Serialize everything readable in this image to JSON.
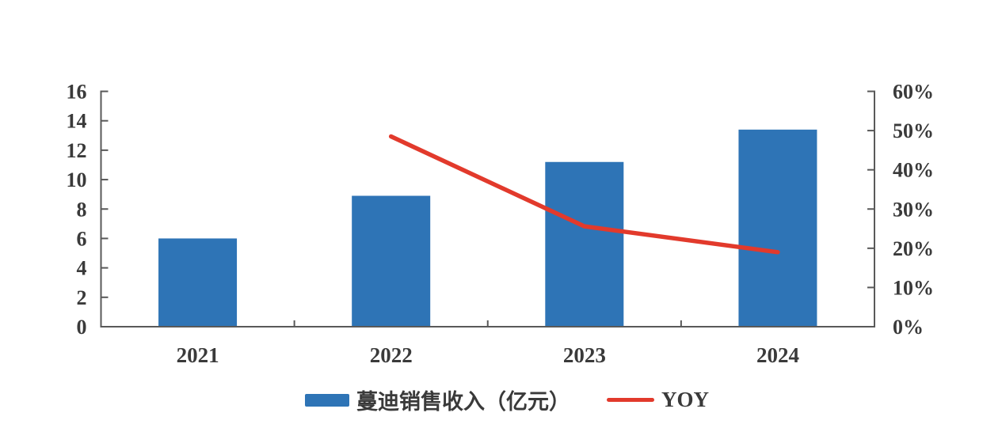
{
  "chart": {
    "background_color": "#ffffff",
    "bar_color": "#2e74b6",
    "line_color": "#e23a2c",
    "axis_color": "#595959",
    "text_color": "#3a3a3a"
  },
  "chart_data": {
    "type": "bar",
    "title": "",
    "categories": [
      "2021",
      "2022",
      "2023",
      "2024"
    ],
    "series": [
      {
        "name": "蔓迪销售收入（亿元）",
        "type": "bar",
        "axis": "left",
        "values": [
          6.0,
          8.9,
          11.2,
          13.4
        ]
      },
      {
        "name": "YOY",
        "type": "line",
        "axis": "right",
        "unit": "%",
        "values": [
          null,
          48.5,
          25.6,
          19.0
        ]
      }
    ],
    "left_axis": {
      "min": 0,
      "max": 16,
      "step": 2,
      "tick_labels": [
        "0",
        "2",
        "4",
        "6",
        "8",
        "10",
        "12",
        "14",
        "16"
      ]
    },
    "right_axis": {
      "min": 0,
      "max": 60,
      "step": 10,
      "tick_labels": [
        "0%",
        "10%",
        "20%",
        "30%",
        "40%",
        "50%",
        "60%"
      ]
    },
    "grid": false,
    "legend_position": "bottom"
  },
  "legend": {
    "bar_label": "蔓迪销售收入（亿元）",
    "line_label": "YOY"
  }
}
